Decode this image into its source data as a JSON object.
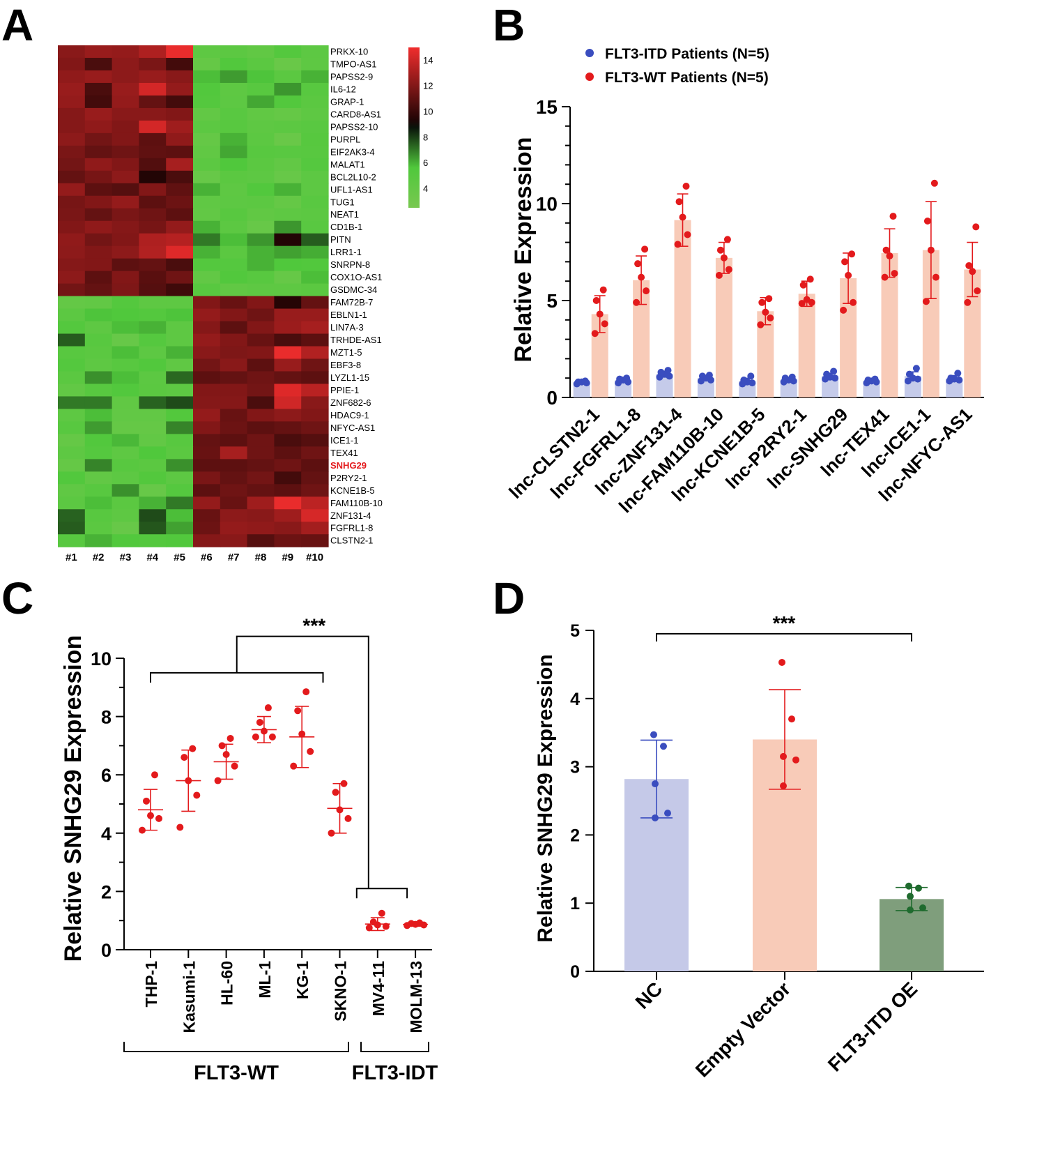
{
  "panels": {
    "A": {
      "letter": "A",
      "chart_data": {
        "type": "heatmap",
        "samples": [
          "#1",
          "#2",
          "#3",
          "#4",
          "#5",
          "#6",
          "#7",
          "#8",
          "#9",
          "#10"
        ],
        "genes": [
          "PRKX-10",
          "TMPO-AS1",
          "PAPSS2-9",
          "IL6-12",
          "GRAP-1",
          "CARD8-AS1",
          "PAPSS2-10",
          "PURPL",
          "EIF2AK3-4",
          "MALAT1",
          "BCL2L10-2",
          "UFL1-AS1",
          "TUG1",
          "NEAT1",
          "CD1B-1",
          "PITN",
          "LRR1-1",
          "SNRPN-8",
          "COX1O-AS1",
          "GSDMC-34",
          "FAM72B-7",
          "EBLN1-1",
          "LIN7A-3",
          "TRHDE-AS1",
          "MZT1-5",
          "EBF3-8",
          "LYZL1-15",
          "PPIE-1",
          "ZNF682-6",
          "HDAC9-1",
          "NFYC-AS1",
          "ICE1-1",
          "TEX41",
          "SNHG29",
          "P2RY2-1",
          "KCNE1B-5",
          "FAM110B-10",
          "ZNF131-4",
          "FGFRL1-8",
          "CLSTN2-1"
        ],
        "highlight_gene": "SNHG29",
        "highlight_color": "#e31a1c",
        "colorbar": {
          "ticks": [
            14,
            12,
            10,
            8,
            6,
            4
          ],
          "range": [
            2.5,
            15
          ],
          "low_color": "#78c850",
          "mid_color": "#000000",
          "high_color": "#f02d2d"
        },
        "values": [
          [
            12.2,
            12.6,
            12.5,
            13.2,
            14.8,
            4.5,
            4.7,
            4.3,
            5.3,
            4.6
          ],
          [
            12.0,
            10.5,
            12.3,
            11.8,
            10.3,
            4.0,
            5.5,
            4.8,
            3.7,
            4.5
          ],
          [
            12.4,
            12.6,
            12.3,
            12.6,
            12.2,
            5.8,
            6.4,
            5.7,
            4.8,
            6.0
          ],
          [
            12.6,
            10.5,
            12.6,
            14.2,
            12.5,
            5.5,
            4.5,
            5.0,
            6.5,
            5.0
          ],
          [
            12.5,
            10.3,
            12.5,
            11.2,
            10.3,
            5.3,
            4.6,
            6.2,
            5.4,
            4.8
          ],
          [
            12.1,
            12.6,
            12.2,
            12.2,
            12.0,
            4.2,
            4.9,
            4.3,
            4.0,
            4.5
          ],
          [
            12.1,
            12.4,
            12.0,
            14.2,
            12.8,
            4.7,
            5.0,
            4.5,
            4.7,
            4.9
          ],
          [
            12.3,
            11.6,
            12.0,
            11.0,
            12.4,
            4.0,
            6.0,
            4.7,
            3.7,
            5.1
          ],
          [
            11.8,
            11.2,
            11.5,
            11.1,
            11.0,
            4.3,
            6.2,
            5.0,
            4.9,
            5.0
          ],
          [
            11.6,
            12.4,
            12.0,
            10.7,
            13.0,
            4.7,
            5.6,
            4.8,
            4.2,
            5.2
          ],
          [
            11.2,
            11.7,
            12.3,
            9.4,
            10.5,
            3.8,
            4.8,
            4.6,
            3.8,
            4.6
          ],
          [
            12.5,
            11.0,
            10.8,
            12.0,
            11.1,
            6.0,
            4.5,
            5.5,
            6.0,
            4.6
          ],
          [
            11.7,
            12.0,
            12.5,
            11.0,
            11.4,
            4.4,
            4.6,
            4.7,
            4.0,
            4.9
          ],
          [
            11.8,
            11.2,
            11.8,
            11.5,
            11.0,
            4.2,
            5.0,
            4.3,
            4.5,
            4.7
          ],
          [
            12.0,
            12.4,
            12.1,
            11.7,
            12.5,
            6.0,
            4.7,
            3.8,
            6.5,
            4.9
          ],
          [
            12.4,
            11.6,
            12.0,
            13.2,
            13.4,
            7.0,
            5.8,
            6.5,
            9.4,
            7.5
          ],
          [
            12.3,
            12.0,
            12.3,
            13.3,
            14.5,
            6.0,
            4.8,
            6.0,
            6.3,
            6.1
          ],
          [
            12.1,
            12.0,
            11.0,
            11.2,
            10.5,
            5.3,
            5.2,
            6.0,
            5.6,
            5.5
          ],
          [
            12.3,
            11.0,
            12.0,
            10.9,
            11.5,
            4.2,
            5.5,
            5.0,
            3.9,
            5.8
          ],
          [
            11.6,
            11.2,
            11.9,
            10.8,
            10.2,
            5.0,
            4.3,
            4.5,
            4.5,
            4.8
          ],
          [
            4.1,
            4.2,
            5.3,
            4.5,
            4.5,
            12.0,
            11.3,
            12.0,
            9.5,
            11.2
          ],
          [
            4.7,
            5.7,
            5.6,
            5.3,
            5.7,
            12.5,
            12.0,
            11.5,
            12.6,
            12.6
          ],
          [
            5.3,
            4.5,
            5.8,
            6.0,
            4.5,
            12.1,
            11.0,
            12.0,
            12.7,
            13.0
          ],
          [
            7.5,
            5.0,
            3.8,
            5.2,
            4.5,
            12.5,
            12.0,
            11.3,
            10.5,
            11.0
          ],
          [
            5.0,
            4.8,
            5.8,
            4.6,
            6.0,
            12.2,
            11.9,
            12.0,
            14.8,
            13.3
          ],
          [
            5.3,
            4.5,
            5.0,
            5.5,
            4.4,
            11.6,
            12.2,
            11.0,
            12.6,
            11.5
          ],
          [
            4.8,
            6.6,
            5.8,
            4.7,
            7.3,
            11.0,
            11.2,
            11.5,
            11.2,
            11.0
          ],
          [
            4.2,
            5.0,
            5.5,
            4.8,
            4.6,
            12.0,
            12.0,
            11.6,
            14.5,
            13.5
          ],
          [
            7.0,
            7.0,
            4.3,
            7.4,
            7.8,
            12.1,
            12.1,
            10.5,
            14.1,
            12.2
          ],
          [
            4.5,
            5.8,
            4.2,
            4.2,
            5.4,
            12.5,
            11.3,
            12.0,
            12.3,
            12.0
          ],
          [
            5.0,
            6.4,
            4.0,
            4.0,
            6.8,
            12.0,
            11.4,
            11.0,
            11.2,
            11.5
          ],
          [
            4.0,
            5.5,
            5.9,
            4.2,
            5.0,
            11.2,
            11.0,
            11.5,
            10.5,
            10.8
          ],
          [
            4.5,
            5.2,
            4.5,
            5.6,
            4.8,
            11.3,
            13.0,
            11.5,
            11.0,
            11.5
          ],
          [
            4.0,
            6.8,
            5.0,
            4.8,
            6.6,
            11.0,
            11.0,
            11.2,
            11.5,
            11.0
          ],
          [
            5.5,
            4.2,
            4.6,
            5.4,
            4.6,
            11.8,
            11.2,
            11.6,
            10.3,
            11.2
          ],
          [
            4.4,
            5.0,
            6.6,
            3.8,
            5.2,
            11.0,
            11.5,
            11.2,
            11.0,
            11.5
          ],
          [
            4.7,
            5.8,
            4.8,
            6.0,
            7.0,
            12.5,
            11.3,
            12.8,
            14.8,
            13.6
          ],
          [
            7.4,
            5.0,
            4.5,
            7.8,
            5.8,
            11.3,
            12.3,
            12.2,
            12.8,
            14.3
          ],
          [
            7.5,
            4.8,
            3.8,
            7.6,
            6.3,
            11.4,
            12.5,
            12.4,
            12.2,
            12.9
          ],
          [
            5.0,
            6.0,
            5.5,
            5.3,
            5.5,
            12.1,
            12.2,
            10.8,
            11.4,
            11.3
          ]
        ]
      }
    },
    "B": {
      "letter": "B",
      "chart_data": {
        "type": "bar",
        "title": "",
        "xlabel": "",
        "ylabel": "Relative  Expression",
        "ylim": [
          0,
          15
        ],
        "yticks": [
          0,
          5,
          10,
          15
        ],
        "categories": [
          "lnc-CLSTN2-1",
          "lnc-FGFRL1-8",
          "lnc-ZNF131-4",
          "lnc-FAM110B-10",
          "lnc-KCNE1B-5",
          "lnc-P2RY2-1",
          "lnc-SNHG29",
          "lnc-TEX41",
          "lnc-ICE1-1",
          "lnc-NFYC-AS1"
        ],
        "legend": [
          {
            "label": "FLT3-ITD Patients (N=5)",
            "color": "#3a4dbf"
          },
          {
            "label": "FLT3-WT Patients (N=5)",
            "color": "#e31a1c"
          }
        ],
        "series": [
          {
            "name": "FLT3-ITD Patients (N=5)",
            "bar_color": "#c5cbea",
            "dot_color": "#3a4dbf",
            "values": [
              0.78,
              0.88,
              1.2,
              1.0,
              0.85,
              0.92,
              1.1,
              0.85,
              1.1,
              0.98
            ],
            "sd": [
              0.08,
              0.12,
              0.15,
              0.12,
              0.14,
              0.1,
              0.15,
              0.08,
              0.22,
              0.15
            ],
            "points": [
              [
                0.7,
                0.75,
                0.8,
                0.8,
                0.85
              ],
              [
                0.75,
                0.8,
                0.9,
                0.95,
                1.0
              ],
              [
                1.05,
                1.1,
                1.2,
                1.3,
                1.4
              ],
              [
                0.85,
                0.9,
                1.0,
                1.1,
                1.15
              ],
              [
                0.7,
                0.75,
                0.8,
                0.9,
                1.1
              ],
              [
                0.8,
                0.85,
                0.9,
                1.0,
                1.05
              ],
              [
                0.95,
                1.0,
                1.05,
                1.2,
                1.35
              ],
              [
                0.75,
                0.8,
                0.85,
                0.9,
                0.95
              ],
              [
                0.85,
                0.95,
                1.0,
                1.2,
                1.5
              ],
              [
                0.85,
                0.9,
                0.95,
                1.0,
                1.25
              ]
            ]
          },
          {
            "name": "FLT3-WT Patients (N=5)",
            "bar_color": "#f8cbb8",
            "dot_color": "#e31a1c",
            "values": [
              4.3,
              6.05,
              9.15,
              7.2,
              4.45,
              5.35,
              6.15,
              7.45,
              7.6,
              6.6
            ],
            "sd": [
              0.95,
              1.25,
              1.35,
              0.8,
              0.7,
              0.65,
              1.3,
              1.25,
              2.5,
              1.4
            ],
            "points": [
              [
                3.3,
                3.8,
                4.3,
                5.0,
                5.55
              ],
              [
                4.9,
                5.5,
                6.2,
                6.9,
                7.65
              ],
              [
                7.9,
                8.4,
                9.3,
                10.1,
                10.9
              ],
              [
                6.3,
                6.6,
                7.2,
                7.6,
                8.15
              ],
              [
                3.75,
                4.1,
                4.4,
                4.9,
                5.1
              ],
              [
                4.85,
                4.9,
                5.05,
                5.8,
                6.1
              ],
              [
                4.5,
                4.9,
                6.3,
                7.0,
                7.4
              ],
              [
                6.2,
                6.4,
                7.3,
                7.6,
                9.35
              ],
              [
                4.95,
                6.2,
                7.6,
                9.1,
                11.05
              ],
              [
                4.9,
                5.5,
                6.5,
                6.8,
                8.8
              ]
            ]
          }
        ]
      }
    },
    "C": {
      "letter": "C",
      "chart_data": {
        "type": "scatter",
        "title": "",
        "ylabel": "Relative SNHG29 Expression",
        "ylim": [
          0,
          10
        ],
        "yticks": [
          0,
          2,
          4,
          6,
          8,
          10
        ],
        "categories": [
          "THP-1",
          "Kasumi-1",
          "HL-60",
          "ML-1",
          "KG-1",
          "SKNO-1",
          "MV4-11",
          "MOLM-13"
        ],
        "dot_color": "#e31a1c",
        "means": [
          4.8,
          5.8,
          6.45,
          7.55,
          7.3,
          4.85,
          0.88,
          0.87
        ],
        "sd": [
          0.7,
          1.05,
          0.6,
          0.45,
          1.05,
          0.85,
          0.22,
          0.06
        ],
        "points": [
          [
            4.1,
            4.5,
            4.6,
            5.1,
            6.0
          ],
          [
            4.2,
            5.3,
            5.8,
            6.6,
            6.9
          ],
          [
            5.8,
            6.3,
            6.7,
            7.0,
            7.25
          ],
          [
            7.3,
            7.3,
            7.5,
            7.8,
            8.3
          ],
          [
            6.3,
            6.8,
            7.4,
            8.2,
            8.85
          ],
          [
            4.0,
            4.5,
            4.8,
            5.4,
            5.7
          ],
          [
            0.75,
            0.8,
            0.85,
            0.95,
            1.25
          ],
          [
            0.83,
            0.85,
            0.87,
            0.9,
            0.92
          ]
        ],
        "groups": [
          {
            "label": "FLT3-WT",
            "members": [
              "THP-1",
              "Kasumi-1",
              "HL-60",
              "ML-1",
              "KG-1",
              "SKNO-1"
            ]
          },
          {
            "label": "FLT3-IDT",
            "members": [
              "MV4-11",
              "MOLM-13"
            ]
          }
        ],
        "significance": "***"
      }
    },
    "D": {
      "letter": "D",
      "chart_data": {
        "type": "bar",
        "title": "",
        "ylabel": "Relative SNHG29 Expression",
        "ylim": [
          0,
          5
        ],
        "yticks": [
          0,
          1,
          2,
          3,
          4,
          5
        ],
        "categories": [
          "NC",
          "Empty Vector",
          "FLT3-ITD OE"
        ],
        "values": [
          2.82,
          3.4,
          1.06
        ],
        "sd": [
          0.57,
          0.73,
          0.17
        ],
        "bar_colors": [
          "#c5c9e8",
          "#f8cbb8",
          "#7f9e7c"
        ],
        "dot_colors": [
          "#3a4dbf",
          "#e31a1c",
          "#1f6b2e"
        ],
        "points": [
          [
            2.25,
            2.32,
            2.75,
            3.3,
            3.47
          ],
          [
            2.72,
            3.1,
            3.15,
            3.7,
            4.53
          ],
          [
            0.9,
            0.93,
            1.1,
            1.22,
            1.25
          ]
        ],
        "significance": "***"
      }
    }
  }
}
